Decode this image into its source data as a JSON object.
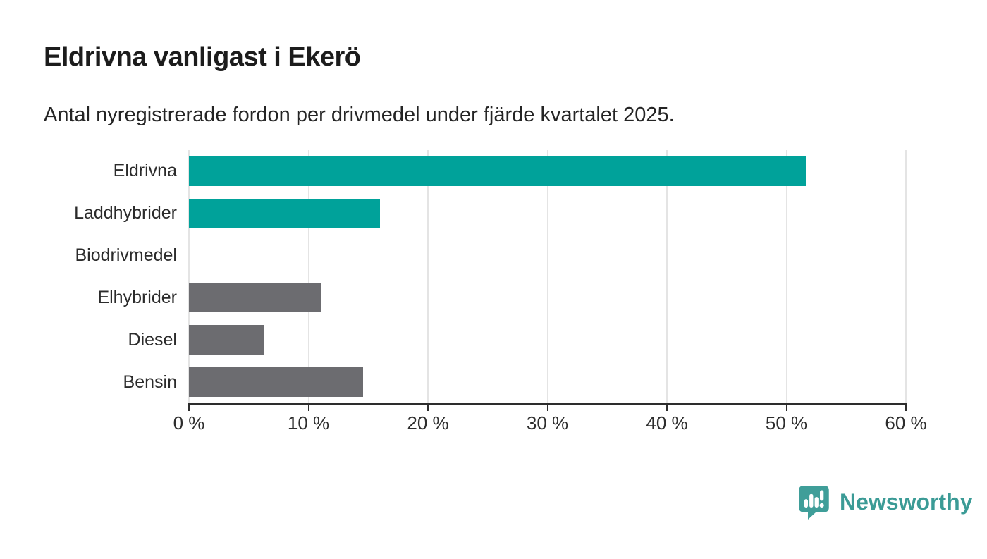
{
  "chart": {
    "title": "Eldrivna vanligast i Ekerö",
    "subtitle": "Antal nyregistrerade fordon per drivmedel under fjärde kvartalet 2025."
  },
  "chart_data": {
    "type": "bar",
    "orientation": "horizontal",
    "title": "Eldrivna vanligast i Ekerö",
    "subtitle": "Antal nyregistrerade fordon per drivmedel under fjärde kvartalet 2025.",
    "categories": [
      "Eldrivna",
      "Laddhybrider",
      "Biodrivmedel",
      "Elhybrider",
      "Diesel",
      "Bensin"
    ],
    "values": [
      51.6,
      16.0,
      0,
      11.1,
      6.3,
      14.6
    ],
    "unit": "%",
    "xlabel": "",
    "ylabel": "",
    "xlim": [
      0,
      60
    ],
    "x_ticks": [
      0,
      10,
      20,
      30,
      40,
      50,
      60
    ],
    "x_tick_labels": [
      "0 %",
      "10 %",
      "20 %",
      "30 %",
      "40 %",
      "50 %",
      "60 %"
    ],
    "grid": "vertical-only",
    "legend": "none",
    "bar_colors": [
      "#00a29a",
      "#00a29a",
      "#6c6c70",
      "#6c6c70",
      "#6c6c70",
      "#6c6c70"
    ],
    "highlight_color": "#00a29a",
    "default_color": "#6c6c70"
  },
  "branding": {
    "logo_text": "Newsworthy",
    "logo_color": "#3b9b96"
  }
}
